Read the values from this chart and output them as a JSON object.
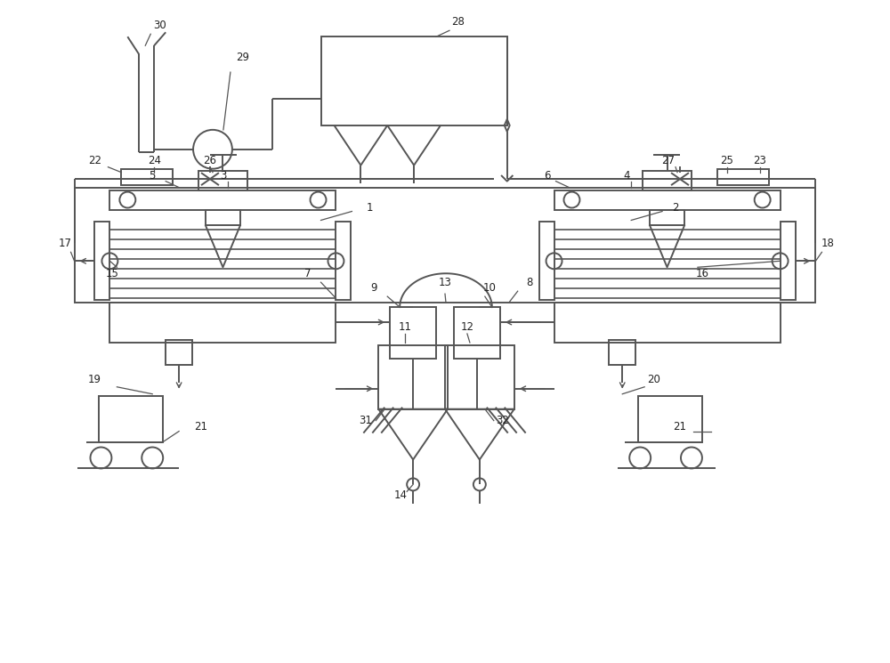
{
  "bg_color": "#ffffff",
  "lc": "#555555",
  "lw": 1.4,
  "fig_w": 10.0,
  "fig_h": 7.45,
  "xlim": [
    0,
    10
  ],
  "ylim": [
    0,
    7.45
  ]
}
